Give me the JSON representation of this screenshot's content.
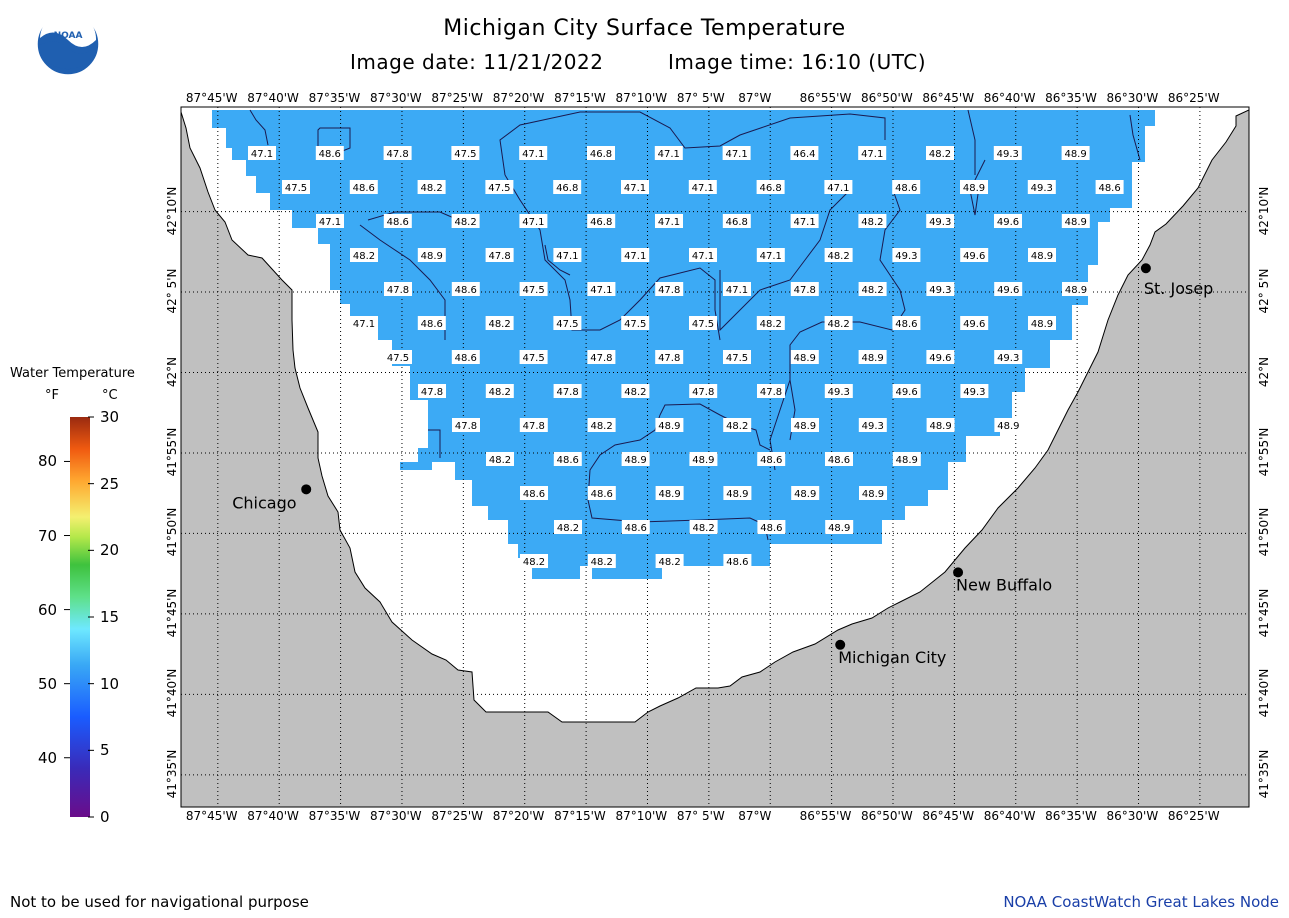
{
  "header": {
    "title": "Michigan City Surface Temperature",
    "image_date_label": "Image date: 11/21/2022",
    "image_time_label": "Image time: 16:10 (UTC)"
  },
  "longitude_labels": [
    "87°45'W",
    "87°40'W",
    "87°35'W",
    "87°30'W",
    "87°25'W",
    "87°20'W",
    "87°15'W",
    "87°10'W",
    "87° 5'W",
    "87°W",
    "86°55'W",
    "86°50'W",
    "86°45'W",
    "86°40'W",
    "86°35'W",
    "86°30'W",
    "86°25'W"
  ],
  "latitude_labels": [
    "42°10'N",
    "42° 5'N",
    "42°N",
    "41°55'N",
    "41°50'N",
    "41°45'N",
    "41°40'N",
    "41°35'N"
  ],
  "legend": {
    "title": "Water Temperature",
    "unit_f": "°F",
    "unit_c": "°C",
    "f_ticks": [
      "80",
      "70",
      "60",
      "50",
      "40"
    ],
    "c_ticks": [
      "30",
      "25",
      "20",
      "15",
      "10",
      "5",
      "0"
    ]
  },
  "cities": [
    {
      "name": "Chicago",
      "lon": -87.63,
      "lat": 41.879
    },
    {
      "name": "St. Josep",
      "lon": -86.49,
      "lat": 42.108
    },
    {
      "name": "New Buffalo",
      "lon": -86.745,
      "lat": 41.793
    },
    {
      "name": "Michigan City",
      "lon": -86.905,
      "lat": 41.718
    }
  ],
  "temperature_labels": [
    [
      "47.1",
      "48.6",
      "47.8",
      "47.5",
      "47.1",
      "46.8",
      "47.1",
      "47.1",
      "46.4",
      "47.1",
      "48.2",
      "49.3",
      "48.9"
    ],
    [
      "47.5",
      "48.6",
      "48.2",
      "47.5",
      "46.8",
      "47.1",
      "47.1",
      "46.8",
      "47.1",
      "48.6",
      "48.9",
      "49.3",
      "48.6"
    ],
    [
      "47.1",
      "48.6",
      "48.2",
      "47.1",
      "46.8",
      "47.1",
      "46.8",
      "47.1",
      "48.2",
      "49.3",
      "49.6",
      "48.9"
    ],
    [
      "48.2",
      "48.9",
      "47.8",
      "47.1",
      "47.1",
      "47.1",
      "47.1",
      "48.2",
      "49.3",
      "49.6",
      "48.9"
    ],
    [
      "47.8",
      "48.6",
      "47.5",
      "47.1",
      "47.8",
      "47.1",
      "47.8",
      "48.2",
      "49.3",
      "49.6",
      "48.9"
    ],
    [
      "47.1",
      "48.6",
      "48.2",
      "47.5",
      "47.5",
      "47.5",
      "48.2",
      "48.2",
      "48.6",
      "49.6",
      "48.9"
    ],
    [
      "47.5",
      "48.6",
      "47.5",
      "47.8",
      "47.8",
      "47.5",
      "48.9",
      "48.9",
      "49.6",
      "49.3"
    ],
    [
      "47.8",
      "48.2",
      "47.8",
      "48.2",
      "47.8",
      "47.8",
      "49.3",
      "49.6",
      "49.3"
    ],
    [
      "47.8",
      "47.8",
      "48.2",
      "48.9",
      "48.2",
      "48.9",
      "49.3",
      "48.9",
      "48.9"
    ],
    [
      "48.2",
      "48.6",
      "48.9",
      "48.9",
      "48.6",
      "48.6",
      "48.9"
    ],
    [
      "48.6",
      "48.6",
      "48.9",
      "48.9",
      "48.9",
      "48.9"
    ],
    [
      "48.2",
      "48.6",
      "48.2",
      "48.6",
      "48.9"
    ],
    [
      "48.2",
      "48.2",
      "48.2",
      "48.6"
    ]
  ],
  "colors": {
    "land": "#c0c0c0",
    "water_data": "#3caaf5",
    "water_nodata": "#ffffff",
    "footer_credit": "#1a3fa8"
  },
  "footer": {
    "disclaimer": "Not to be used for navigational purpose",
    "credit": "NOAA CoastWatch Great Lakes Node"
  },
  "logo_text": "NOAA"
}
